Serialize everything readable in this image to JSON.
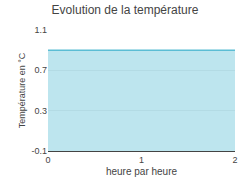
{
  "chart_data": {
    "type": "area",
    "title": "Evolution de la température",
    "xlabel": "heure par heure",
    "ylabel": "Température en °C",
    "x": [
      0,
      2
    ],
    "values": [
      0.9,
      0.9
    ],
    "color": "#5bbdd4",
    "xlim": [
      0,
      2
    ],
    "ylim": [
      -0.1,
      1.1
    ],
    "xticks": [
      0,
      1,
      2
    ],
    "yticks": [
      -0.1,
      0.3,
      0.7,
      1.1
    ],
    "grid": true
  }
}
